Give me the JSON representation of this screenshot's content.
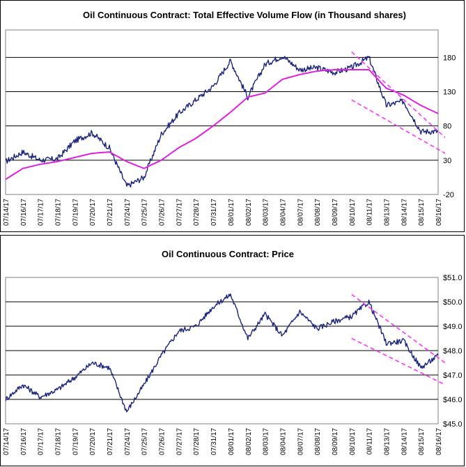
{
  "chart_data": [
    {
      "type": "line",
      "title": "Oil Continuous Contract: Total Effective Volume Flow (in Thousand shares)",
      "xlabel": "",
      "ylabel": "",
      "ylim": [
        -20,
        220
      ],
      "yticks": [
        "-20",
        "30",
        "80",
        "130",
        "180"
      ],
      "ytick_values": [
        -20,
        30,
        80,
        130,
        180
      ],
      "yaxis_side": "right",
      "grid": true,
      "categories": [
        "07/14/17",
        "07/16/17",
        "07/17/17",
        "07/18/17",
        "07/19/17",
        "07/20/17",
        "07/21/17",
        "07/24/17",
        "07/25/17",
        "07/26/17",
        "07/27/17",
        "07/28/17",
        "07/31/17",
        "08/01/17",
        "08/02/17",
        "08/03/17",
        "08/04/17",
        "08/07/17",
        "08/08/17",
        "08/09/17",
        "08/10/17",
        "08/11/17",
        "08/13/17",
        "08/14/17",
        "08/15/17",
        "08/16/17"
      ],
      "series": [
        {
          "color": "#1a237e",
          "values": [
            28,
            42,
            30,
            32,
            58,
            70,
            48,
            -8,
            5,
            68,
            98,
            118,
            138,
            175,
            122,
            170,
            182,
            162,
            165,
            158,
            165,
            180,
            110,
            116,
            72,
            72
          ]
        },
        {
          "color": "#e020e0",
          "values": [
            2,
            18,
            24,
            28,
            34,
            40,
            42,
            28,
            18,
            30,
            48,
            62,
            80,
            100,
            122,
            128,
            148,
            155,
            160,
            162,
            162,
            162,
            135,
            125,
            110,
            98
          ]
        }
      ],
      "trendlines": [
        {
          "color": "#ff33ff",
          "from": [
            "08/10/17",
            188
          ],
          "to": [
            "08/16/17",
            63
          ]
        },
        {
          "color": "#ff33ff",
          "from": [
            "08/10/17",
            118
          ],
          "to": [
            "08/16/17",
            40
          ]
        }
      ]
    },
    {
      "type": "line",
      "title": "Oil Continuous Contract: Price",
      "xlabel": "",
      "ylabel": "",
      "ylim": [
        45,
        51
      ],
      "yticks": [
        "$45.0",
        "$46.0",
        "$47.0",
        "$48.0",
        "$49.0",
        "$50.0",
        "$51.0"
      ],
      "ytick_values": [
        45,
        46,
        47,
        48,
        49,
        50,
        51
      ],
      "yaxis_side": "right",
      "grid": true,
      "categories": [
        "07/14/17",
        "07/16/17",
        "07/17/17",
        "07/18/17",
        "07/19/17",
        "07/20/17",
        "07/21/17",
        "07/24/17",
        "07/25/17",
        "07/26/17",
        "07/27/17",
        "07/28/17",
        "07/31/17",
        "08/01/17",
        "08/02/17",
        "08/03/17",
        "08/04/17",
        "08/07/17",
        "08/08/17",
        "08/09/17",
        "08/10/17",
        "08/11/17",
        "08/13/17",
        "08/14/17",
        "08/15/17",
        "08/16/17"
      ],
      "series": [
        {
          "color": "#1a237e",
          "values": [
            46.0,
            46.6,
            46.1,
            46.4,
            46.9,
            47.5,
            47.3,
            45.5,
            46.6,
            47.8,
            48.8,
            49.0,
            49.8,
            50.3,
            48.5,
            49.5,
            48.6,
            49.6,
            48.9,
            49.2,
            49.4,
            50.0,
            48.3,
            48.4,
            47.3,
            47.8
          ]
        }
      ],
      "trendlines": [
        {
          "color": "#ff33ff",
          "from": [
            "08/10/17",
            50.3
          ],
          "to": [
            "08/16/17",
            47.5
          ]
        },
        {
          "color": "#ff33ff",
          "from": [
            "08/10/17",
            48.5
          ],
          "to": [
            "08/16/17",
            46.6
          ]
        }
      ]
    }
  ]
}
